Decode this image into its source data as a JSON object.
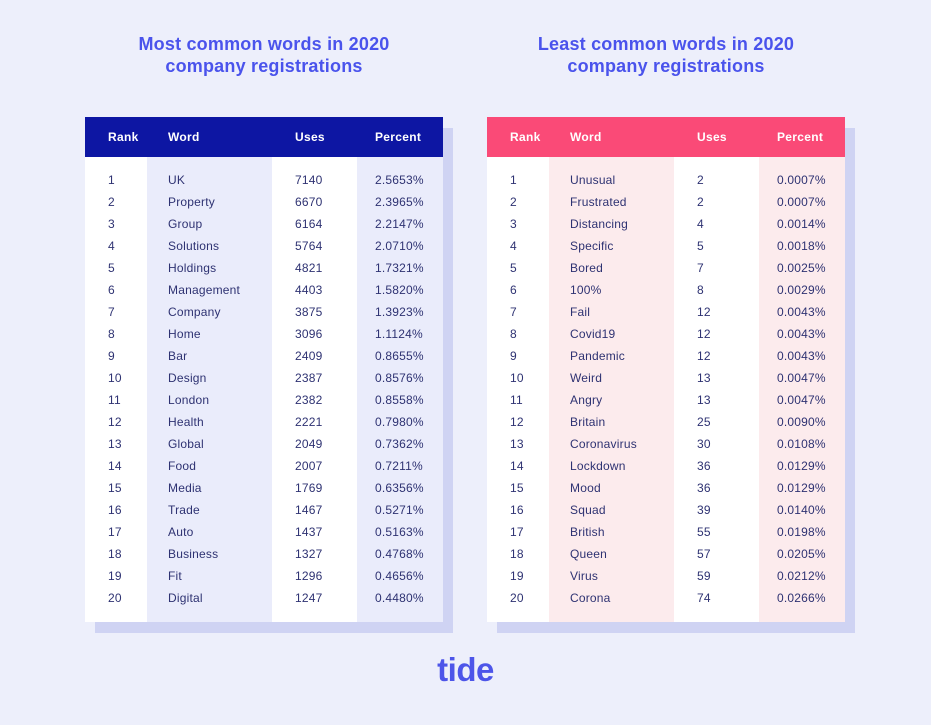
{
  "page": {
    "background_color": "#edeffb",
    "title_color": "#4a53ec",
    "logo_text": "tide",
    "logo_color": "#4d55e9",
    "shadow_color": "#cfd3f3",
    "body_text_color": "#2e3272"
  },
  "chart_data": [
    {
      "type": "table",
      "title": "Most common words in 2020 company registrations",
      "title_line1": "Most common words in 2020",
      "title_line2": "company registrations",
      "header_color": "#0d16a3",
      "stripe_color": "#eaecfb",
      "columns": [
        "Rank",
        "Word",
        "Uses",
        "Percent"
      ],
      "rows": [
        [
          "1",
          "UK",
          "7140",
          "2.5653%"
        ],
        [
          "2",
          "Property",
          "6670",
          "2.3965%"
        ],
        [
          "3",
          "Group",
          "6164",
          "2.2147%"
        ],
        [
          "4",
          "Solutions",
          "5764",
          "2.0710%"
        ],
        [
          "5",
          "Holdings",
          "4821",
          "1.7321%"
        ],
        [
          "6",
          "Management",
          "4403",
          "1.5820%"
        ],
        [
          "7",
          "Company",
          "3875",
          "1.3923%"
        ],
        [
          "8",
          "Home",
          "3096",
          "1.1124%"
        ],
        [
          "9",
          "Bar",
          "2409",
          "0.8655%"
        ],
        [
          "10",
          "Design",
          "2387",
          "0.8576%"
        ],
        [
          "11",
          "London",
          "2382",
          "0.8558%"
        ],
        [
          "12",
          "Health",
          "2221",
          "0.7980%"
        ],
        [
          "13",
          "Global",
          "2049",
          "0.7362%"
        ],
        [
          "14",
          "Food",
          "2007",
          "0.7211%"
        ],
        [
          "15",
          "Media",
          "1769",
          "0.6356%"
        ],
        [
          "16",
          "Trade",
          "1467",
          "0.5271%"
        ],
        [
          "17",
          "Auto",
          "1437",
          "0.5163%"
        ],
        [
          "18",
          "Business",
          "1327",
          "0.4768%"
        ],
        [
          "19",
          "Fit",
          "1296",
          "0.4656%"
        ],
        [
          "20",
          "Digital",
          "1247",
          "0.4480%"
        ]
      ]
    },
    {
      "type": "table",
      "title": "Least common words in 2020 company registrations",
      "title_line1": "Least common words in 2020",
      "title_line2": "company registrations",
      "header_color": "#fa4a77",
      "stripe_color": "#fcebed",
      "columns": [
        "Rank",
        "Word",
        "Uses",
        "Percent"
      ],
      "rows": [
        [
          "1",
          "Unusual",
          "2",
          "0.0007%"
        ],
        [
          "2",
          "Frustrated",
          "2",
          "0.0007%"
        ],
        [
          "3",
          "Distancing",
          "4",
          "0.0014%"
        ],
        [
          "4",
          "Specific",
          "5",
          "0.0018%"
        ],
        [
          "5",
          "Bored",
          "7",
          "0.0025%"
        ],
        [
          "6",
          "100%",
          "8",
          "0.0029%"
        ],
        [
          "7",
          "Fail",
          "12",
          "0.0043%"
        ],
        [
          "8",
          "Covid19",
          "12",
          "0.0043%"
        ],
        [
          "9",
          "Pandemic",
          "12",
          "0.0043%"
        ],
        [
          "10",
          "Weird",
          "13",
          "0.0047%"
        ],
        [
          "11",
          "Angry",
          "13",
          "0.0047%"
        ],
        [
          "12",
          "Britain",
          "25",
          "0.0090%"
        ],
        [
          "13",
          "Coronavirus",
          "30",
          "0.0108%"
        ],
        [
          "14",
          "Lockdown",
          "36",
          "0.0129%"
        ],
        [
          "15",
          "Mood",
          "36",
          "0.0129%"
        ],
        [
          "16",
          "Squad",
          "39",
          "0.0140%"
        ],
        [
          "17",
          "British",
          "55",
          "0.0198%"
        ],
        [
          "18",
          "Queen",
          "57",
          "0.0205%"
        ],
        [
          "19",
          "Virus",
          "59",
          "0.0212%"
        ],
        [
          "20",
          "Corona",
          "74",
          "0.0266%"
        ]
      ]
    }
  ]
}
